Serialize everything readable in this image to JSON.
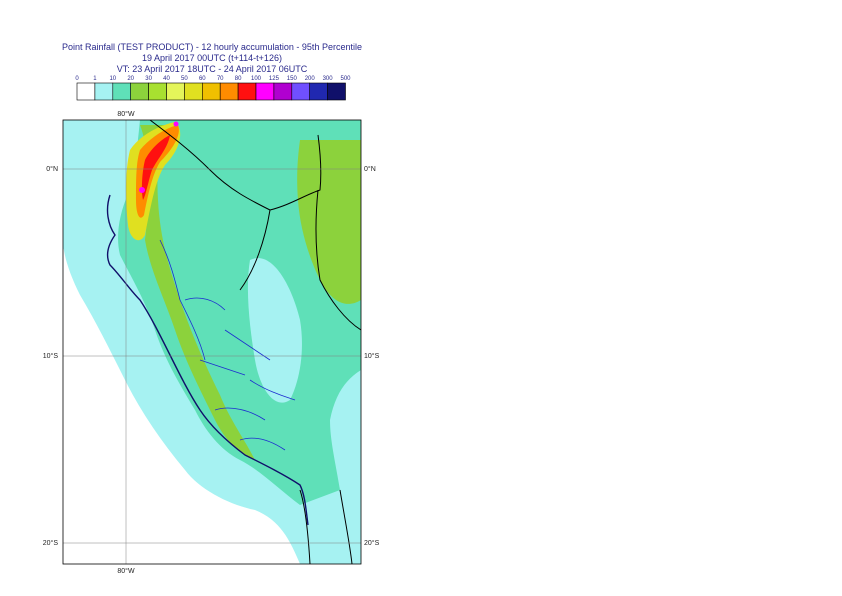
{
  "header": {
    "title": "Point Rainfall (TEST PRODUCT) - 12 hourly accumulation - 95th Percentile",
    "base_time": "19 April 2017 00UTC (t+114-t+126)",
    "valid_time": "VT: 23 April 2017 18UTC - 24 April 2017 06UTC"
  },
  "legend": {
    "thresholds": [
      "0",
      "1",
      "10",
      "20",
      "30",
      "40",
      "50",
      "60",
      "70",
      "80",
      "100",
      "125",
      "150",
      "200",
      "300",
      "500"
    ],
    "colors": [
      "#ffffff",
      "#a6f2f2",
      "#5fe0b8",
      "#8cd23c",
      "#a8e030",
      "#e4f55a",
      "#e0e020",
      "#f0c000",
      "#ff8c00",
      "#ff1010",
      "#ff00ff",
      "#b000d0",
      "#7050ff",
      "#2028b0",
      "#10106a"
    ]
  },
  "map": {
    "lon_labels": {
      "top": "80°W",
      "bottom": "80°W"
    },
    "lat_labels": [
      {
        "left": "0°N",
        "right": "0°N"
      },
      {
        "left": "10°S",
        "right": "10°S"
      },
      {
        "left": "20°S",
        "right": "20°S"
      }
    ]
  }
}
